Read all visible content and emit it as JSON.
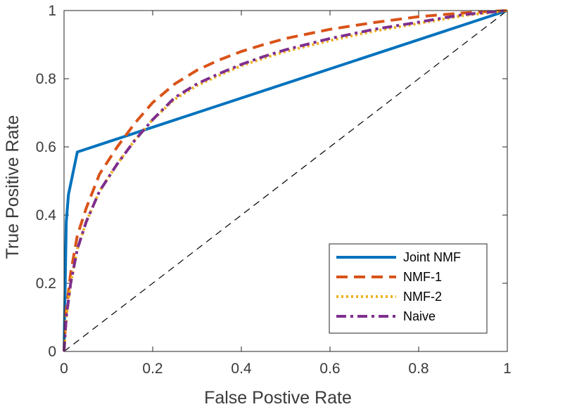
{
  "chart_data": {
    "type": "line",
    "title": "",
    "xlabel": "False Postive Rate",
    "ylabel": "True Positive Rate",
    "xlim": [
      0,
      1
    ],
    "ylim": [
      0,
      1
    ],
    "xticks": [
      "0",
      "0.2",
      "0.4",
      "0.6",
      "0.8",
      "1"
    ],
    "yticks": [
      "0",
      "0.2",
      "0.4",
      "0.6",
      "0.8",
      "1"
    ],
    "grid": false,
    "legend_position": "bottom-right",
    "reference_line": {
      "name": "chance",
      "x": [
        0,
        1
      ],
      "y": [
        0,
        1
      ],
      "color": "#000000",
      "style": "dashed"
    },
    "series": [
      {
        "name": "Joint NMF",
        "color": "#0072BD",
        "style": "solid",
        "x": [
          0,
          0.005,
          0.01,
          0.03,
          1
        ],
        "y": [
          0,
          0.38,
          0.46,
          0.585,
          1
        ]
      },
      {
        "name": "NMF-1",
        "color": "#D95319",
        "style": "dashed",
        "x": [
          0,
          0.005,
          0.015,
          0.03,
          0.05,
          0.08,
          0.12,
          0.16,
          0.2,
          0.25,
          0.3,
          0.35,
          0.4,
          0.45,
          0.5,
          0.6,
          0.7,
          0.8,
          0.9,
          1
        ],
        "y": [
          0,
          0.12,
          0.23,
          0.34,
          0.42,
          0.52,
          0.6,
          0.67,
          0.73,
          0.785,
          0.825,
          0.855,
          0.88,
          0.9,
          0.918,
          0.945,
          0.965,
          0.982,
          0.993,
          1
        ]
      },
      {
        "name": "NMF-2",
        "color": "#EDB120",
        "style": "dotted",
        "x": [
          0,
          0.005,
          0.015,
          0.03,
          0.05,
          0.08,
          0.12,
          0.16,
          0.2,
          0.25,
          0.3,
          0.35,
          0.4,
          0.45,
          0.5,
          0.6,
          0.7,
          0.8,
          0.9,
          1
        ],
        "y": [
          0,
          0.1,
          0.2,
          0.3,
          0.38,
          0.47,
          0.55,
          0.62,
          0.68,
          0.74,
          0.78,
          0.81,
          0.838,
          0.86,
          0.88,
          0.912,
          0.94,
          0.962,
          0.985,
          1
        ]
      },
      {
        "name": "Naive",
        "color": "#7E2F8E",
        "style": "dashdot",
        "x": [
          0,
          0.005,
          0.015,
          0.03,
          0.05,
          0.08,
          0.12,
          0.16,
          0.2,
          0.25,
          0.3,
          0.35,
          0.4,
          0.45,
          0.5,
          0.6,
          0.7,
          0.8,
          0.9,
          1
        ],
        "y": [
          0,
          0.1,
          0.2,
          0.3,
          0.38,
          0.47,
          0.55,
          0.62,
          0.68,
          0.745,
          0.785,
          0.815,
          0.842,
          0.865,
          0.885,
          0.918,
          0.945,
          0.966,
          0.988,
          1
        ]
      }
    ]
  }
}
